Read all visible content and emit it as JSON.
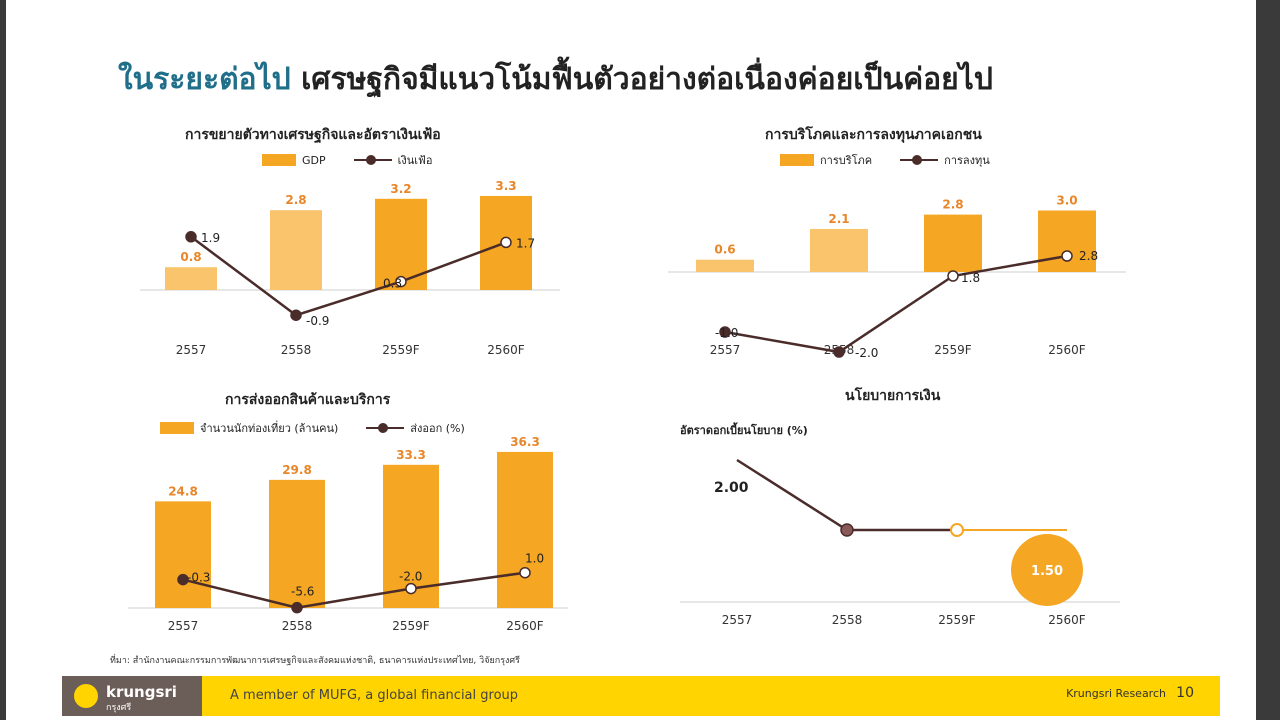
{
  "slide": {
    "title_accent": "ในระยะต่อไป",
    "title_rest": "เศรษฐกิจมีแนวโน้มฟื้นตัวอย่างต่อเนื่องค่อยเป็นค่อยไป",
    "source": "ที่มา: สำนักงานคณะกรรมการพัฒนาการเศรษฐกิจและสังคมแห่งชาติ, ธนาคารแห่งประเทศไทย, วิจัยกรุงศรี",
    "footer": {
      "logo_text": "krungsri",
      "logo_sub": "กรุงศรี",
      "tagline": "A member of MUFG, a global financial group",
      "research": "Krungsri Research",
      "page": "10"
    }
  },
  "colors": {
    "bar": "#f5a623",
    "bar_light": "#f9c46b",
    "line": "#4a2c2a",
    "bar_label": "#e8862a",
    "policy_future": "#f5a623"
  },
  "chart_data": [
    {
      "type": "bar",
      "title": "การขยายตัวทางเศรษฐกิจและอัตราเงินเฟ้อ",
      "categories": [
        "2557",
        "2558",
        "2559F",
        "2560F"
      ],
      "series": [
        {
          "name": "GDP",
          "kind": "bar",
          "values": [
            0.8,
            2.8,
            3.2,
            3.3
          ],
          "labels": [
            "0.8",
            "2.8",
            "3.2",
            "3.3"
          ]
        },
        {
          "name": "เงินเฟ้อ",
          "kind": "line",
          "values": [
            1.9,
            -0.9,
            0.3,
            1.7
          ],
          "labels": [
            "1.9",
            "-0.9",
            "0.3",
            "1.7"
          ]
        }
      ]
    },
    {
      "type": "bar",
      "title": "การบริโภคและการลงทุนภาคเอกชน",
      "categories": [
        "2557",
        "2558",
        "2559F",
        "2560F"
      ],
      "series": [
        {
          "name": "การบริโภค",
          "kind": "bar",
          "values": [
            0.6,
            2.1,
            2.8,
            3.0
          ],
          "labels": [
            "0.6",
            "2.1",
            "2.8",
            "3.0"
          ]
        },
        {
          "name": "การลงทุน",
          "kind": "line",
          "values": [
            -1.0,
            -2.0,
            1.8,
            2.8
          ],
          "labels": [
            "-1.0",
            "-2.0",
            "1.8",
            "2.8"
          ]
        }
      ]
    },
    {
      "type": "bar",
      "title": "การส่งออกสินค้าและบริการ",
      "categories": [
        "2557",
        "2558",
        "2559F",
        "2560F"
      ],
      "series": [
        {
          "name": "จำนวนนักท่องเที่ยว (ล้านคน)",
          "kind": "bar",
          "values": [
            24.8,
            29.8,
            33.3,
            36.3
          ],
          "labels": [
            "24.8",
            "29.8",
            "33.3",
            "36.3"
          ]
        },
        {
          "name": "ส่งออก (%)",
          "kind": "line",
          "values": [
            -0.3,
            -5.6,
            -2.0,
            1.0
          ],
          "labels": [
            "-0.3",
            "-5.6",
            "-2.0",
            "1.0"
          ]
        }
      ]
    },
    {
      "type": "line",
      "title": "นโยบายการเงิน",
      "ylabel": "อัตราดอกเบี้ยนโยบาย (%)",
      "categories": [
        "2557",
        "2558",
        "2559F",
        "2560F"
      ],
      "series": [
        {
          "name": "อัตราดอกเบี้ยนโยบาย",
          "values": [
            2.0,
            1.5,
            1.5,
            1.5
          ],
          "labels": [
            "2.00",
            "",
            "",
            "1.50"
          ]
        }
      ]
    }
  ]
}
